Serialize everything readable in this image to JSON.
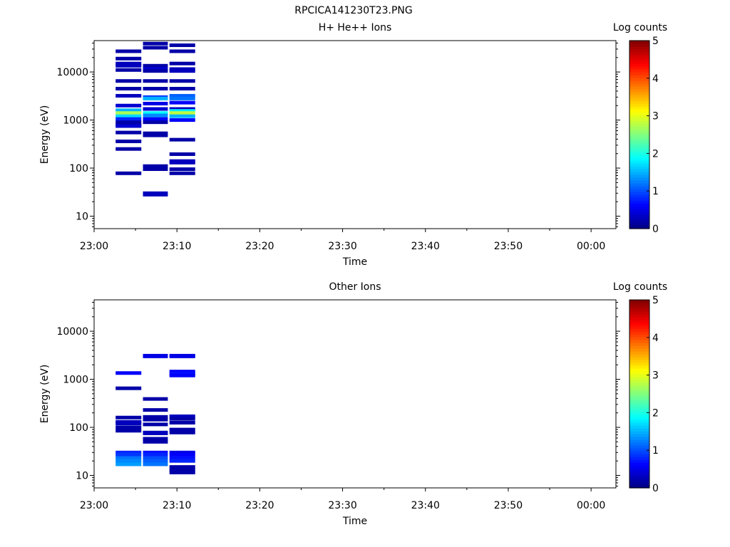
{
  "figure_title": "RPCICA141230T23.PNG",
  "chart_data": [
    {
      "type": "heatmap",
      "title": "H+ He++ Ions",
      "xlabel": "Time",
      "ylabel": "Energy (eV)",
      "yscale": "log",
      "ylim": [
        5.5,
        45000
      ],
      "x_range_minutes": [
        0,
        63
      ],
      "xticks": [
        {
          "min": 0,
          "label": "23:00"
        },
        {
          "min": 10,
          "label": "23:10"
        },
        {
          "min": 20,
          "label": "23:20"
        },
        {
          "min": 30,
          "label": "23:30"
        },
        {
          "min": 40,
          "label": "23:40"
        },
        {
          "min": 50,
          "label": "23:50"
        },
        {
          "min": 60,
          "label": "00:00"
        }
      ],
      "yticks": [
        {
          "value": 10,
          "label": "10"
        },
        {
          "value": 100,
          "label": "100"
        },
        {
          "value": 1000,
          "label": "1000"
        },
        {
          "value": 10000,
          "label": "10000"
        }
      ],
      "colorbar": {
        "label": "Log counts",
        "range": [
          0,
          5
        ],
        "ticks": [
          "0",
          "1",
          "2",
          "3",
          "4",
          "5"
        ]
      },
      "columns": [
        {
          "t0": 2.6,
          "t1": 5.7,
          "cells": [
            [
              27000,
              0.2
            ],
            [
              19000,
              0.2
            ],
            [
              15000,
              0.3
            ],
            [
              13500,
              0.3
            ],
            [
              11000,
              0.2
            ],
            [
              6500,
              0.2
            ],
            [
              4500,
              0.2
            ],
            [
              3200,
              0.3
            ],
            [
              2000,
              0.4
            ],
            [
              1600,
              1.5
            ],
            [
              1400,
              2.7
            ],
            [
              1200,
              1.7
            ],
            [
              1050,
              0.8
            ],
            [
              900,
              0.2
            ],
            [
              800,
              0.2
            ],
            [
              750,
              0.4
            ],
            [
              550,
              0.2
            ],
            [
              360,
              0.2
            ],
            [
              250,
              0.2
            ],
            [
              78,
              0.2
            ]
          ]
        },
        {
          "t0": 5.9,
          "t1": 8.9,
          "cells": [
            [
              39000,
              0.2
            ],
            [
              32000,
              0.2
            ],
            [
              13500,
              0.2
            ],
            [
              11500,
              0.4
            ],
            [
              10500,
              0.2
            ],
            [
              6500,
              0.2
            ],
            [
              4500,
              0.2
            ],
            [
              3000,
              0.9
            ],
            [
              2800,
              1.5
            ],
            [
              2200,
              0.5
            ],
            [
              1700,
              0.4
            ],
            [
              1400,
              1.9
            ],
            [
              1250,
              1.3
            ],
            [
              1050,
              0.6
            ],
            [
              900,
              0.2
            ],
            [
              530,
              0.2
            ],
            [
              480,
              0.2
            ],
            [
              110,
              0.2
            ],
            [
              95,
              0.2
            ],
            [
              30,
              0.3
            ],
            [
              28,
              0.3
            ]
          ]
        },
        {
          "t0": 9.1,
          "t1": 12.2,
          "cells": [
            [
              36000,
              0.2
            ],
            [
              27000,
              0.2
            ],
            [
              15000,
              0.2
            ],
            [
              11500,
              0.3
            ],
            [
              10500,
              0.3
            ],
            [
              6500,
              0.2
            ],
            [
              4500,
              0.2
            ],
            [
              3200,
              1.1
            ],
            [
              2800,
              1.2
            ],
            [
              2300,
              0.6
            ],
            [
              1700,
              0.3
            ],
            [
              1550,
              1.8
            ],
            [
              1400,
              2.8
            ],
            [
              1200,
              1.5
            ],
            [
              1000,
              0.6
            ],
            [
              390,
              0.2
            ],
            [
              195,
              0.2
            ],
            [
              140,
              0.3
            ],
            [
              130,
              0.3
            ],
            [
              95,
              0.2
            ],
            [
              78,
              0.2
            ]
          ]
        }
      ]
    },
    {
      "type": "heatmap",
      "title": "Other Ions",
      "xlabel": "Time",
      "ylabel": "Energy (eV)",
      "yscale": "log",
      "ylim": [
        5.5,
        45000
      ],
      "x_range_minutes": [
        0,
        63
      ],
      "xticks": [
        {
          "min": 0,
          "label": "23:00"
        },
        {
          "min": 10,
          "label": "23:10"
        },
        {
          "min": 20,
          "label": "23:20"
        },
        {
          "min": 30,
          "label": "23:30"
        },
        {
          "min": 40,
          "label": "23:40"
        },
        {
          "min": 50,
          "label": "23:50"
        },
        {
          "min": 60,
          "label": "00:00"
        }
      ],
      "yticks": [
        {
          "value": 10,
          "label": "10"
        },
        {
          "value": 100,
          "label": "100"
        },
        {
          "value": 1000,
          "label": "1000"
        },
        {
          "value": 10000,
          "label": "10000"
        }
      ],
      "colorbar": {
        "label": "Log counts",
        "range": [
          0,
          5
        ],
        "ticks": [
          "0",
          "1",
          "2",
          "3",
          "4",
          "5"
        ]
      },
      "columns": [
        {
          "t0": 2.6,
          "t1": 5.7,
          "cells": [
            [
              1350,
              0.6
            ],
            [
              650,
              0.2
            ],
            [
              160,
              0.2
            ],
            [
              130,
              0.3
            ],
            [
              120,
              0.3
            ],
            [
              100,
              0.2
            ],
            [
              85,
              0.2
            ],
            [
              30,
              0.8
            ],
            [
              27,
              0.9
            ],
            [
              23,
              1.2
            ],
            [
              20,
              1.3
            ],
            [
              17,
              1.4
            ]
          ]
        },
        {
          "t0": 5.9,
          "t1": 8.9,
          "cells": [
            [
              3100,
              0.5
            ],
            [
              3000,
              0.5
            ],
            [
              390,
              0.2
            ],
            [
              230,
              0.2
            ],
            [
              165,
              0.2
            ],
            [
              145,
              0.2
            ],
            [
              115,
              0.2
            ],
            [
              78,
              0.3
            ],
            [
              75,
              0.3
            ],
            [
              58,
              0.2
            ],
            [
              50,
              0.2
            ],
            [
              30,
              0.7
            ],
            [
              27,
              0.8
            ],
            [
              23,
              1.0
            ],
            [
              20,
              1.1
            ],
            [
              17,
              1.2
            ]
          ]
        },
        {
          "t0": 9.1,
          "t1": 12.2,
          "cells": [
            [
              3100,
              0.5
            ],
            [
              3000,
              0.5
            ],
            [
              1450,
              0.6
            ],
            [
              1300,
              0.7
            ],
            [
              1200,
              0.6
            ],
            [
              170,
              0.3
            ],
            [
              150,
              0.2
            ],
            [
              125,
              0.2
            ],
            [
              90,
              0.2
            ],
            [
              78,
              0.2
            ],
            [
              30,
              0.5
            ],
            [
              27,
              0.6
            ],
            [
              23,
              0.7
            ],
            [
              20,
              0.8
            ],
            [
              15,
              0.2
            ],
            [
              13,
              0.2
            ],
            [
              11.5,
              0.2
            ]
          ]
        }
      ]
    }
  ]
}
